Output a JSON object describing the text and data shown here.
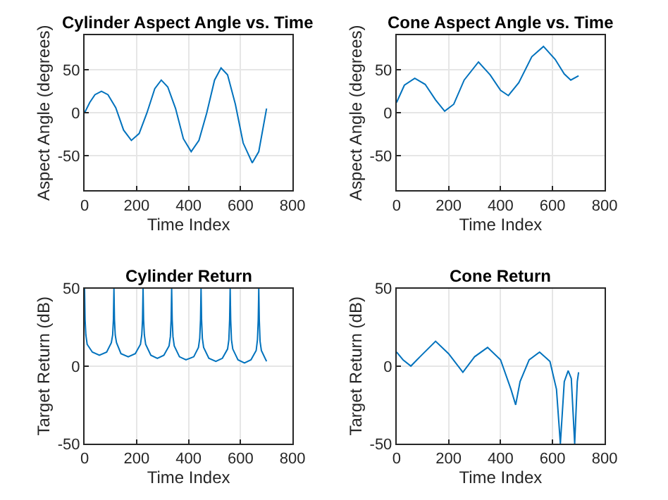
{
  "chart_data": [
    {
      "type": "line",
      "title": "Cylinder Aspect Angle vs. Time",
      "xlabel": "Time Index",
      "ylabel": "Aspect Angle (degrees)",
      "xlim": [
        0,
        800
      ],
      "xticks": [
        0,
        200,
        400,
        600,
        800
      ],
      "ylim": [
        -90,
        90
      ],
      "yticks": [
        -50,
        0,
        50
      ],
      "grid": true,
      "series": [
        {
          "color": "#0072bd",
          "x": [
            0,
            20,
            40,
            65,
            90,
            120,
            150,
            180,
            210,
            240,
            270,
            295,
            320,
            350,
            380,
            410,
            440,
            470,
            500,
            525,
            550,
            580,
            610,
            645,
            670,
            700
          ],
          "values": [
            0,
            12,
            21,
            25,
            21,
            6,
            -20,
            -32,
            -24,
            0,
            28,
            38,
            30,
            5,
            -30,
            -45,
            -32,
            0,
            38,
            52,
            44,
            10,
            -35,
            -58,
            -45,
            5
          ]
        }
      ]
    },
    {
      "type": "line",
      "title": "Cone Aspect Angle vs. Time",
      "xlabel": "Time Index",
      "ylabel": "Aspect Angle (degrees)",
      "xlim": [
        0,
        800
      ],
      "xticks": [
        0,
        200,
        400,
        600,
        800
      ],
      "ylim": [
        -90,
        90
      ],
      "yticks": [
        -50,
        0,
        50
      ],
      "grid": true,
      "series": [
        {
          "color": "#0072bd",
          "x": [
            0,
            30,
            70,
            110,
            150,
            185,
            220,
            260,
            315,
            360,
            400,
            430,
            470,
            520,
            565,
            610,
            645,
            670,
            700
          ],
          "values": [
            12,
            32,
            40,
            33,
            15,
            2,
            10,
            38,
            59,
            44,
            26,
            20,
            35,
            65,
            77,
            62,
            45,
            38,
            43
          ]
        }
      ]
    },
    {
      "type": "line",
      "title": "Cylinder Return",
      "xlabel": "Time Index",
      "ylabel": "Target Return (dB)",
      "xlim": [
        0,
        800
      ],
      "xticks": [
        0,
        200,
        400,
        600,
        800
      ],
      "ylim": [
        -50,
        50
      ],
      "yticks": [
        -50,
        0,
        50
      ],
      "grid": true,
      "series": [
        {
          "color": "#0072bd",
          "x": [
            0,
            2,
            5,
            10,
            30,
            57,
            85,
            103,
            108,
            111,
            113,
            115,
            118,
            123,
            140,
            168,
            195,
            215,
            220,
            223,
            225,
            227,
            230,
            235,
            255,
            280,
            305,
            325,
            330,
            333,
            335,
            337,
            340,
            345,
            365,
            390,
            420,
            438,
            443,
            446,
            448,
            450,
            453,
            458,
            478,
            505,
            530,
            550,
            555,
            558,
            560,
            562,
            565,
            570,
            590,
            615,
            640,
            660,
            665,
            668,
            670,
            672,
            675,
            680,
            700
          ],
          "values": [
            50,
            30,
            20,
            14,
            9,
            7,
            9,
            15,
            20,
            30,
            50,
            30,
            20,
            15,
            8,
            6,
            8,
            14,
            20,
            30,
            50,
            30,
            20,
            14,
            7,
            5,
            7,
            13,
            19,
            30,
            50,
            30,
            19,
            13,
            6,
            4,
            6,
            12,
            18,
            30,
            50,
            30,
            18,
            12,
            5,
            3,
            5,
            11,
            17,
            30,
            50,
            30,
            17,
            11,
            4,
            2,
            4,
            10,
            17,
            30,
            50,
            30,
            16,
            10,
            3
          ]
        }
      ]
    },
    {
      "type": "line",
      "title": "Cone Return",
      "xlabel": "Time Index",
      "ylabel": "Target Return (dB)",
      "xlim": [
        0,
        800
      ],
      "xticks": [
        0,
        200,
        400,
        600,
        800
      ],
      "ylim": [
        -50,
        50
      ],
      "yticks": [
        -50,
        0,
        50
      ],
      "grid": true,
      "series": [
        {
          "color": "#0072bd",
          "x": [
            0,
            25,
            55,
            90,
            150,
            200,
            255,
            300,
            350,
            400,
            440,
            458,
            475,
            510,
            550,
            590,
            615,
            630,
            645,
            660,
            672,
            685,
            695,
            700
          ],
          "values": [
            9,
            4,
            0,
            6,
            16,
            8,
            -4,
            6,
            12,
            4,
            -15,
            -25,
            -10,
            4,
            9,
            3,
            -15,
            -50,
            -10,
            -3,
            -8,
            -50,
            -10,
            -4
          ]
        }
      ]
    }
  ]
}
